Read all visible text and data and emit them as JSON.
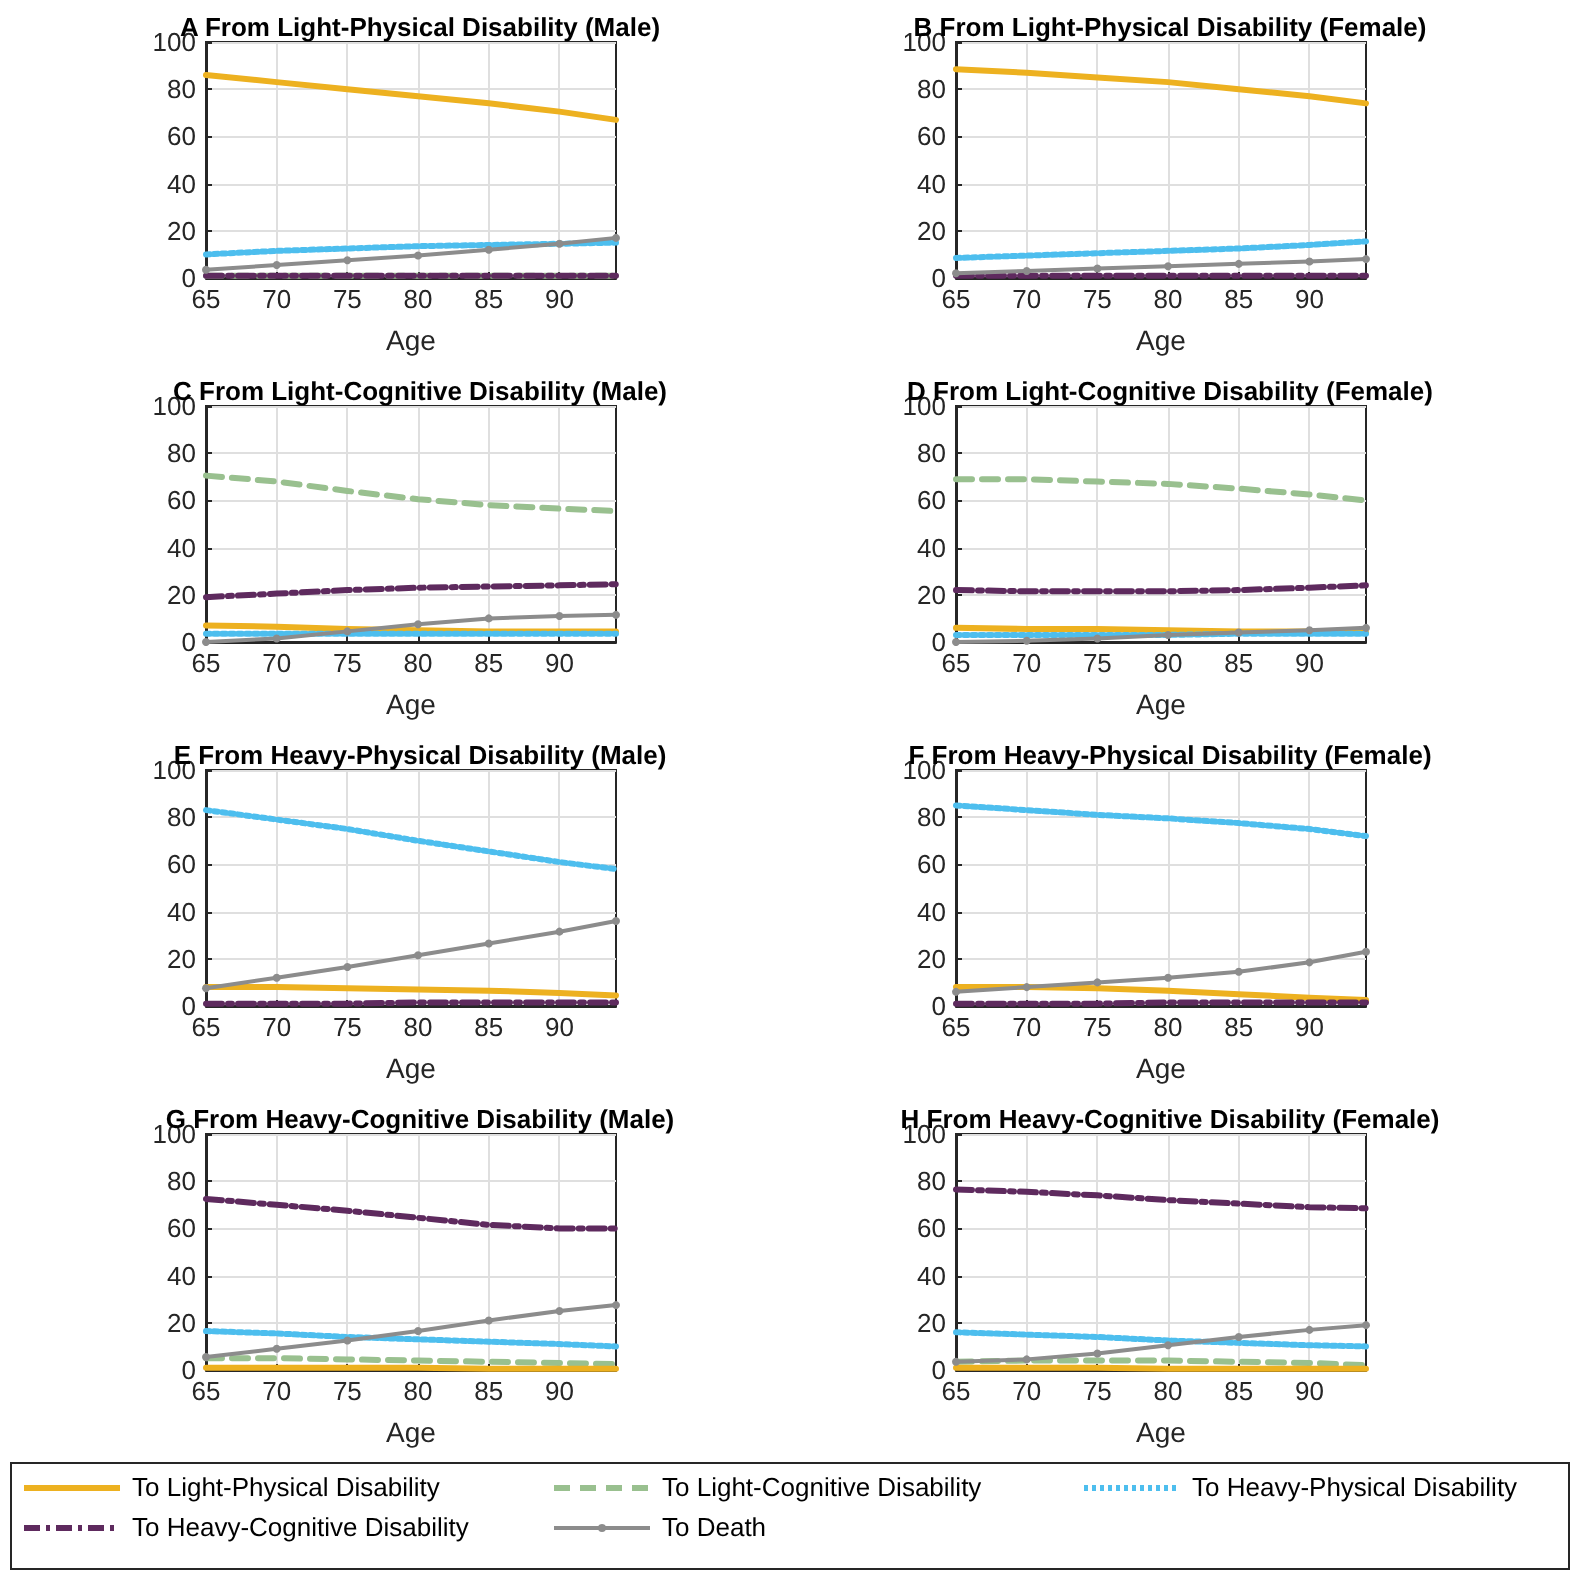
{
  "chart_data": [
    {
      "type": "line",
      "title": "A From Light-Physical Disability (Male)",
      "xlabel": "Age",
      "x": [
        65,
        70,
        75,
        80,
        85,
        90,
        94
      ],
      "xlim": [
        65,
        94
      ],
      "xticks": [
        65,
        70,
        75,
        80,
        85,
        90
      ],
      "ylim": [
        0,
        100
      ],
      "yticks": [
        0,
        20,
        40,
        60,
        80,
        100
      ],
      "grid": true,
      "legend": "bottom",
      "series": [
        {
          "name": "To Light-Physical Disability",
          "color": "#edb120",
          "line_style": "solid",
          "values": [
            86,
            83,
            80,
            77,
            74,
            70.5,
            67
          ]
        },
        {
          "name": "To Light-Cognitive Disability",
          "color": "#99c08f",
          "line_style": "dashed",
          "values": [
            1,
            1,
            1,
            1,
            1,
            1,
            1
          ]
        },
        {
          "name": "To Heavy-Physical Disability",
          "color": "#4dbeee",
          "line_style": "dotted",
          "values": [
            10,
            11.5,
            12.5,
            13.5,
            14,
            14.5,
            15
          ]
        },
        {
          "name": "To Heavy-Cognitive Disability",
          "color": "#5e2a5e",
          "line_style": "dashdot",
          "values": [
            1,
            1,
            1,
            1,
            1,
            1,
            1
          ]
        },
        {
          "name": "To Death",
          "color": "#8c8c8c",
          "line_style": "solid",
          "marker": "circle",
          "values": [
            3.5,
            5.5,
            7.5,
            9.5,
            12,
            14.5,
            17
          ]
        }
      ]
    },
    {
      "type": "line",
      "title": "B From Light-Physical Disability (Female)",
      "xlabel": "Age",
      "x": [
        65,
        70,
        75,
        80,
        85,
        90,
        94
      ],
      "xlim": [
        65,
        94
      ],
      "xticks": [
        65,
        70,
        75,
        80,
        85,
        90
      ],
      "ylim": [
        0,
        100
      ],
      "yticks": [
        0,
        20,
        40,
        60,
        80,
        100
      ],
      "grid": true,
      "series": [
        {
          "color": "#edb120",
          "line_style": "solid",
          "values": [
            88.5,
            87,
            85,
            83,
            80,
            77,
            74
          ]
        },
        {
          "color": "#4dbeee",
          "line_style": "dotted",
          "values": [
            8.5,
            9.5,
            10.5,
            11.5,
            12.5,
            14,
            15.5
          ]
        },
        {
          "color": "#5e2a5e",
          "line_style": "dashdot",
          "values": [
            1,
            1,
            1,
            1,
            1,
            1,
            1
          ]
        },
        {
          "color": "#8c8c8c",
          "line_style": "solid",
          "marker": "circle",
          "values": [
            2,
            3,
            4,
            5,
            6,
            7,
            8
          ]
        }
      ]
    },
    {
      "type": "line",
      "title": "C From Light-Cognitive Disability (Male)",
      "xlabel": "Age",
      "x": [
        65,
        70,
        75,
        80,
        85,
        90,
        94
      ],
      "xlim": [
        65,
        94
      ],
      "xticks": [
        65,
        70,
        75,
        80,
        85,
        90
      ],
      "ylim": [
        0,
        100
      ],
      "yticks": [
        0,
        20,
        40,
        60,
        80,
        100
      ],
      "grid": true,
      "series": [
        {
          "color": "#edb120",
          "line_style": "solid",
          "values": [
            7,
            6.5,
            5.5,
            5,
            4.5,
            4.5,
            4.5
          ]
        },
        {
          "color": "#99c08f",
          "line_style": "dashed",
          "values": [
            70.5,
            68,
            64,
            60.5,
            58,
            56.5,
            55.5
          ]
        },
        {
          "color": "#4dbeee",
          "line_style": "dotted",
          "values": [
            3.5,
            3.5,
            3.5,
            3.5,
            3.5,
            3.5,
            3.5
          ]
        },
        {
          "color": "#5e2a5e",
          "line_style": "dashdot",
          "values": [
            19,
            20.5,
            22,
            23,
            23.5,
            24,
            24.5
          ]
        },
        {
          "color": "#8c8c8c",
          "line_style": "solid",
          "marker": "circle",
          "values": [
            0,
            1.5,
            4.5,
            7.5,
            10,
            11,
            11.5
          ]
        }
      ]
    },
    {
      "type": "line",
      "title": "D From Light-Cognitive Disability (Female)",
      "xlabel": "Age",
      "x": [
        65,
        70,
        75,
        80,
        85,
        90,
        94
      ],
      "xlim": [
        65,
        94
      ],
      "xticks": [
        65,
        70,
        75,
        80,
        85,
        90
      ],
      "ylim": [
        0,
        100
      ],
      "yticks": [
        0,
        20,
        40,
        60,
        80,
        100
      ],
      "grid": true,
      "series": [
        {
          "color": "#edb120",
          "line_style": "solid",
          "values": [
            6,
            5.5,
            5.5,
            5,
            4.5,
            4.5,
            4
          ]
        },
        {
          "color": "#99c08f",
          "line_style": "dashed",
          "values": [
            69,
            69,
            68,
            67,
            65,
            62.5,
            60
          ]
        },
        {
          "color": "#4dbeee",
          "line_style": "dotted",
          "values": [
            3,
            3,
            3,
            3,
            3.5,
            3.5,
            3.5
          ]
        },
        {
          "color": "#5e2a5e",
          "line_style": "dashdot",
          "values": [
            22,
            21.5,
            21.5,
            21.5,
            22,
            23,
            24
          ]
        },
        {
          "color": "#8c8c8c",
          "line_style": "solid",
          "marker": "circle",
          "values": [
            0,
            0.5,
            1.5,
            3,
            4,
            5,
            6
          ]
        }
      ]
    },
    {
      "type": "line",
      "title": "E From Heavy-Physical Disability (Male)",
      "xlabel": "Age",
      "x": [
        65,
        70,
        75,
        80,
        85,
        90,
        94
      ],
      "xlim": [
        65,
        94
      ],
      "xticks": [
        65,
        70,
        75,
        80,
        85,
        90
      ],
      "ylim": [
        0,
        100
      ],
      "yticks": [
        0,
        20,
        40,
        60,
        80,
        100
      ],
      "grid": true,
      "series": [
        {
          "color": "#edb120",
          "line_style": "solid",
          "values": [
            8,
            8,
            7.5,
            7,
            6.5,
            5.5,
            4.5
          ]
        },
        {
          "color": "#4dbeee",
          "line_style": "dotted",
          "values": [
            83,
            79,
            75,
            70,
            65.5,
            61,
            58
          ]
        },
        {
          "color": "#5e2a5e",
          "line_style": "dashdot",
          "values": [
            1,
            1,
            1,
            1.5,
            1.5,
            1.5,
            1.5
          ]
        },
        {
          "color": "#8c8c8c",
          "line_style": "solid",
          "marker": "circle",
          "values": [
            7.5,
            12,
            16.5,
            21.5,
            26.5,
            31.5,
            36
          ]
        }
      ]
    },
    {
      "type": "line",
      "title": "F From Heavy-Physical Disability (Female)",
      "xlabel": "Age",
      "x": [
        65,
        70,
        75,
        80,
        85,
        90,
        94
      ],
      "xlim": [
        65,
        94
      ],
      "xticks": [
        65,
        70,
        75,
        80,
        85,
        90
      ],
      "ylim": [
        0,
        100
      ],
      "yticks": [
        0,
        20,
        40,
        60,
        80,
        100
      ],
      "grid": true,
      "series": [
        {
          "color": "#edb120",
          "line_style": "solid",
          "values": [
            8,
            8,
            7.5,
            6.5,
            5,
            3.5,
            2.5
          ]
        },
        {
          "color": "#4dbeee",
          "line_style": "dotted",
          "values": [
            85,
            83,
            81,
            79.5,
            77.5,
            75,
            72
          ]
        },
        {
          "color": "#5e2a5e",
          "line_style": "dashdot",
          "values": [
            1,
            1,
            1,
            1.5,
            1.5,
            1.5,
            1.5
          ]
        },
        {
          "color": "#8c8c8c",
          "line_style": "solid",
          "marker": "circle",
          "values": [
            6,
            8,
            10,
            12,
            14.5,
            18.5,
            23
          ]
        }
      ]
    },
    {
      "type": "line",
      "title": "G From Heavy-Cognitive Disability (Male)",
      "xlabel": "Age",
      "x": [
        65,
        70,
        75,
        80,
        85,
        90,
        94
      ],
      "xlim": [
        65,
        94
      ],
      "xticks": [
        65,
        70,
        75,
        80,
        85,
        90
      ],
      "ylim": [
        0,
        100
      ],
      "yticks": [
        0,
        20,
        40,
        60,
        80,
        100
      ],
      "grid": true,
      "series": [
        {
          "color": "#edb120",
          "line_style": "solid",
          "values": [
            1,
            1,
            1,
            1,
            0.5,
            0.5,
            0.5
          ]
        },
        {
          "color": "#99c08f",
          "line_style": "dashed",
          "values": [
            5,
            5,
            4.5,
            4,
            3.5,
            3,
            2.5
          ]
        },
        {
          "color": "#4dbeee",
          "line_style": "dotted",
          "values": [
            16.5,
            15.5,
            14,
            13,
            12,
            11,
            10
          ]
        },
        {
          "color": "#5e2a5e",
          "line_style": "dashdot",
          "values": [
            72.5,
            70,
            67.5,
            64.5,
            61.5,
            60,
            60
          ]
        },
        {
          "color": "#8c8c8c",
          "line_style": "solid",
          "marker": "circle",
          "values": [
            5.5,
            9,
            12.5,
            16.5,
            21,
            25,
            27.5
          ]
        }
      ]
    },
    {
      "type": "line",
      "title": "H From Heavy-Cognitive Disability (Female)",
      "xlabel": "Age",
      "x": [
        65,
        70,
        75,
        80,
        85,
        90,
        94
      ],
      "xlim": [
        65,
        94
      ],
      "xticks": [
        65,
        70,
        75,
        80,
        85,
        90
      ],
      "ylim": [
        0,
        100
      ],
      "yticks": [
        0,
        20,
        40,
        60,
        80,
        100
      ],
      "grid": true,
      "series": [
        {
          "color": "#edb120",
          "line_style": "solid",
          "values": [
            1,
            1,
            1,
            0.5,
            0.5,
            0.5,
            0.5
          ]
        },
        {
          "color": "#99c08f",
          "line_style": "dashed",
          "values": [
            3.5,
            4,
            4,
            4,
            3.5,
            3,
            2
          ]
        },
        {
          "color": "#4dbeee",
          "line_style": "dotted",
          "values": [
            16,
            15,
            14,
            12.5,
            11.5,
            10.5,
            10
          ]
        },
        {
          "color": "#5e2a5e",
          "line_style": "dashdot",
          "values": [
            76.5,
            75.5,
            74,
            72,
            70.5,
            69,
            68.5
          ]
        },
        {
          "color": "#8c8c8c",
          "line_style": "solid",
          "marker": "circle",
          "values": [
            3.5,
            4.5,
            7,
            10.5,
            14,
            17,
            19
          ]
        }
      ]
    }
  ]
}
